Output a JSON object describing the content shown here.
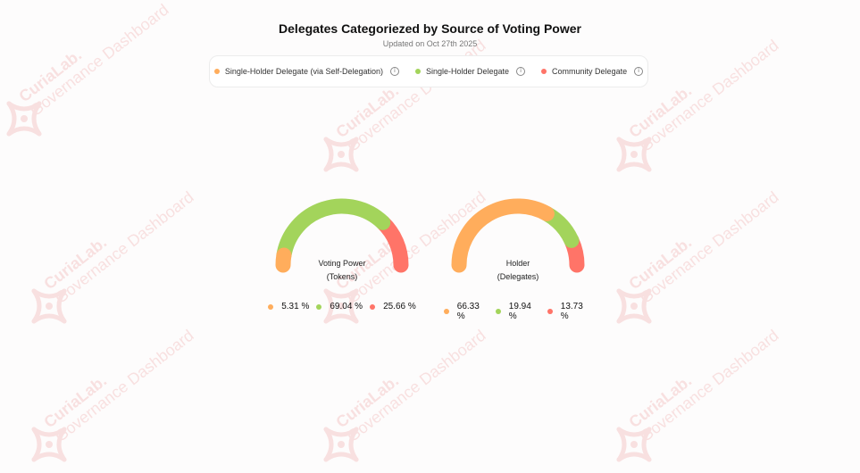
{
  "header": {
    "title": "Delegates Categoriezed by Source of Voting Power",
    "subtitle": "Updated on Oct 27th 2025"
  },
  "legend": [
    {
      "label": "Single-Holder Delegate (via Self-Delegation)",
      "color": "#FFAD5C",
      "icon": "info-icon"
    },
    {
      "label": "Single-Holder Delegate",
      "color": "#A3D45B",
      "icon": "info-icon"
    },
    {
      "label": "Community Delegate",
      "color": "#FF7468",
      "icon": "info-icon"
    }
  ],
  "watermark": {
    "brand": "CuriaLab.",
    "text": "Governance Dashboard",
    "color": "#E35252"
  },
  "chart_data": [
    {
      "type": "gauge",
      "label_line1": "Voting Power",
      "label_line2": "(Tokens)",
      "series": [
        {
          "name": "Single-Holder Delegate (via Self-Delegation)",
          "value": 5.31,
          "display": "5.31 %",
          "color": "#FFAD5C"
        },
        {
          "name": "Single-Holder Delegate",
          "value": 69.04,
          "display": "69.04 %",
          "color": "#A3D45B"
        },
        {
          "name": "Community Delegate",
          "value": 25.66,
          "display": "25.66 %",
          "color": "#FF7468"
        }
      ]
    },
    {
      "type": "gauge",
      "label_line1": "Holder",
      "label_line2": "(Delegates)",
      "series": [
        {
          "name": "Single-Holder Delegate (via Self-Delegation)",
          "value": 66.33,
          "display": "66.33 %",
          "color": "#FFAD5C"
        },
        {
          "name": "Single-Holder Delegate",
          "value": 19.94,
          "display": "19.94 %",
          "color": "#A3D45B"
        },
        {
          "name": "Community Delegate",
          "value": 13.73,
          "display": "13.73 %",
          "color": "#FF7468"
        }
      ]
    }
  ]
}
